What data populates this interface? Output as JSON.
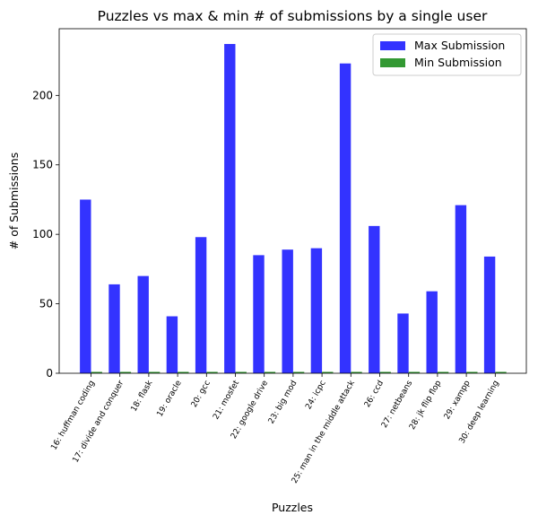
{
  "chart_data": {
    "type": "bar",
    "title": "Puzzles vs max & min # of submissions by a single user",
    "xlabel": "Puzzles",
    "ylabel": "# of Submissions",
    "ylim": [
      0,
      248
    ],
    "yticks": [
      0,
      50,
      100,
      150,
      200
    ],
    "grid": false,
    "legend_position": "top-right",
    "categories": [
      "16: huffman coding",
      "17: divide and conquer",
      "18: flask",
      "19: oracle",
      "20: gcc",
      "21: mosfet",
      "22: google drive",
      "23: big mod",
      "24: icpc",
      "25: man in the middle attack",
      "26: ccd",
      "27: netbeans",
      "28: jk flip flop",
      "29: xampp",
      "30: deep learning"
    ],
    "series": [
      {
        "name": "Max Submission",
        "color": "#3333ff",
        "values": [
          125,
          64,
          70,
          41,
          98,
          237,
          85,
          89,
          90,
          223,
          106,
          43,
          59,
          121,
          84
        ]
      },
      {
        "name": "Min Submission",
        "color": "#339933",
        "values": [
          1,
          1,
          1,
          1,
          1,
          1,
          1,
          1,
          1,
          1,
          1,
          1,
          1,
          1,
          1
        ]
      }
    ]
  }
}
